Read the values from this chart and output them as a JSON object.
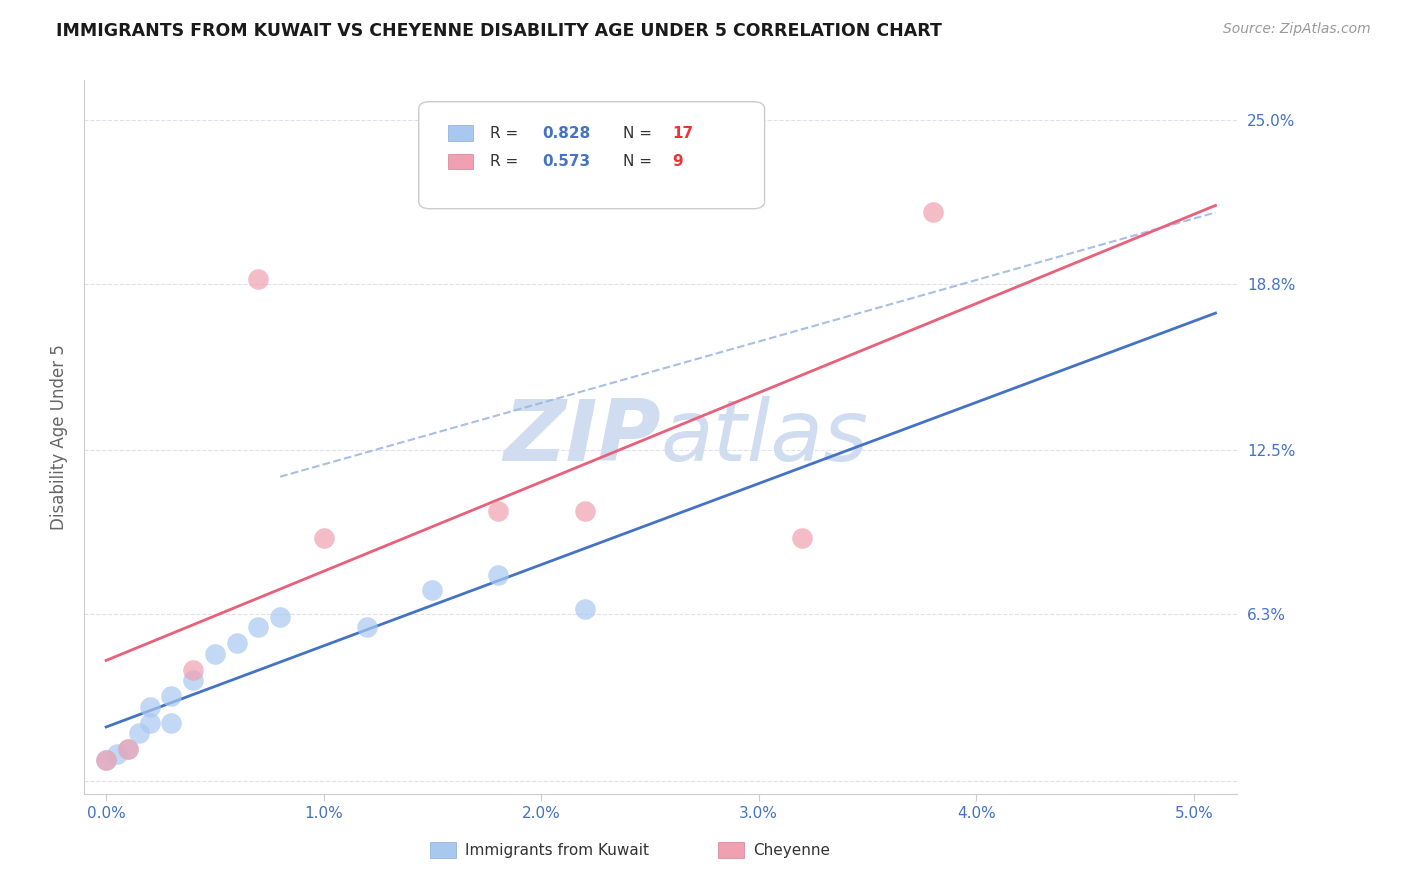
{
  "title": "IMMIGRANTS FROM KUWAIT VS CHEYENNE DISABILITY AGE UNDER 5 CORRELATION CHART",
  "source": "Source: ZipAtlas.com",
  "ylabel": "Disability Age Under 5",
  "xlim": [
    -0.001,
    0.052
  ],
  "ylim": [
    -0.005,
    0.265
  ],
  "R_kuwait": 0.828,
  "N_kuwait": 17,
  "R_cheyenne": 0.573,
  "N_cheyenne": 9,
  "kuwait_x": [
    0.0,
    0.0005,
    0.001,
    0.0015,
    0.002,
    0.002,
    0.003,
    0.003,
    0.004,
    0.005,
    0.006,
    0.007,
    0.008,
    0.012,
    0.015,
    0.018,
    0.022
  ],
  "kuwait_y": [
    0.008,
    0.01,
    0.012,
    0.018,
    0.022,
    0.028,
    0.022,
    0.032,
    0.038,
    0.048,
    0.052,
    0.058,
    0.062,
    0.058,
    0.072,
    0.078,
    0.065
  ],
  "cheyenne_x": [
    0.0,
    0.001,
    0.004,
    0.007,
    0.01,
    0.018,
    0.022,
    0.032,
    0.038
  ],
  "cheyenne_y": [
    0.008,
    0.012,
    0.042,
    0.19,
    0.092,
    0.102,
    0.102,
    0.092,
    0.215
  ],
  "kuwait_color": "#A8C8F0",
  "cheyenne_color": "#F0A0B0",
  "kuwait_line_color": "#4472C4",
  "cheyenne_line_color": "#E8607A",
  "dashed_line_color": "#A0B8E0",
  "grid_color": "#E0E0EC",
  "title_color": "#1A1A1A",
  "axis_tick_color": "#4472C4",
  "source_color": "#999999",
  "legend_R_color": "#4472C4",
  "legend_N_color": "#EE3333",
  "background_color": "#FFFFFF",
  "watermark_color": "#D0DCF0"
}
